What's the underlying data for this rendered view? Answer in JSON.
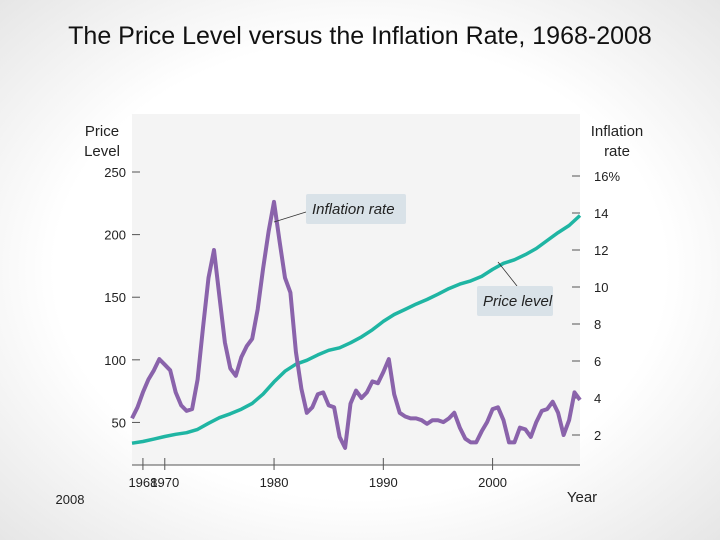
{
  "slide": {
    "title": "The Price Level versus the Inflation Rate, 1968-2008",
    "footer_text": "2008"
  },
  "chart_data": {
    "type": "line",
    "title": "The Price Level versus the Inflation Rate, 1968-2008",
    "xlabel": "Year",
    "ylabel_left": [
      "Price",
      "Level"
    ],
    "ylabel_right": [
      "Inflation",
      "rate"
    ],
    "x_ticks": [
      "1968",
      "1970",
      "1980",
      "1990",
      "2000"
    ],
    "x_range": [
      1967,
      2008
    ],
    "y_left_ticks": [
      "250",
      "200",
      "150",
      "100",
      "50"
    ],
    "y_left_range": [
      20,
      250
    ],
    "y_right_ticks": [
      "16%",
      "14",
      "12",
      "10",
      "8",
      "6",
      "4",
      "2"
    ],
    "y_right_range": [
      1,
      16
    ],
    "annotations": [
      "Inflation rate",
      "Price level"
    ],
    "colors": {
      "price_level": "#1fb5a3",
      "inflation_rate": "#8a63ab",
      "plot_bg": "#f4f4f4"
    },
    "series": [
      {
        "name": "Price level",
        "axis": "left",
        "x": [
          1967,
          1968,
          1969,
          1970,
          1971,
          1972,
          1973,
          1974,
          1975,
          1976,
          1977,
          1978,
          1979,
          1980,
          1981,
          1982,
          1983,
          1984,
          1985,
          1986,
          1987,
          1988,
          1989,
          1990,
          1991,
          1992,
          1993,
          1994,
          1995,
          1996,
          1997,
          1998,
          1999,
          2000,
          2001,
          2002,
          2003,
          2004,
          2005,
          2006,
          2007,
          2008
        ],
        "values": [
          33.4,
          34.8,
          36.7,
          38.8,
          40.5,
          41.8,
          44.4,
          49.3,
          53.8,
          56.9,
          60.6,
          65.2,
          72.6,
          82.4,
          90.9,
          96.5,
          99.6,
          103.9,
          107.6,
          109.6,
          113.6,
          118.3,
          124.0,
          130.7,
          136.2,
          140.3,
          144.5,
          148.2,
          152.4,
          156.9,
          160.5,
          163.0,
          166.6,
          172.2,
          177.1,
          179.9,
          184.0,
          188.9,
          195.3,
          201.6,
          207.3,
          215.3
        ]
      },
      {
        "name": "Inflation rate",
        "axis": "right",
        "x": [
          1967,
          1967.5,
          1968,
          1968.5,
          1969,
          1969.5,
          1970,
          1970.5,
          1971,
          1971.5,
          1972,
          1972.5,
          1973,
          1973.5,
          1974,
          1974.5,
          1975,
          1975.5,
          1976,
          1976.5,
          1977,
          1977.5,
          1978,
          1978.5,
          1979,
          1979.5,
          1980,
          1980.5,
          1981,
          1981.5,
          1982,
          1982.5,
          1983,
          1983.5,
          1984,
          1984.5,
          1985,
          1985.5,
          1986,
          1986.5,
          1987,
          1987.5,
          1988,
          1988.5,
          1989,
          1989.5,
          1990,
          1990.5,
          1991,
          1991.5,
          1992,
          1992.5,
          1993,
          1993.5,
          1994,
          1994.5,
          1995,
          1995.5,
          1996,
          1996.5,
          1997,
          1997.5,
          1998,
          1998.5,
          1999,
          1999.5,
          2000,
          2000.5,
          2001,
          2001.5,
          2002,
          2002.5,
          2003,
          2003.5,
          2004,
          2004.5,
          2005,
          2005.5,
          2006,
          2006.5,
          2007,
          2007.5,
          2008
        ],
        "values": [
          2.9,
          3.5,
          4.3,
          5.0,
          5.5,
          6.1,
          5.8,
          5.5,
          4.3,
          3.6,
          3.3,
          3.4,
          5.0,
          7.8,
          10.5,
          12.0,
          9.5,
          7.0,
          5.6,
          5.2,
          6.2,
          6.8,
          7.2,
          8.8,
          11.0,
          13.0,
          14.6,
          12.5,
          10.5,
          9.7,
          6.5,
          4.5,
          3.2,
          3.5,
          4.2,
          4.3,
          3.6,
          3.5,
          1.9,
          1.3,
          3.7,
          4.4,
          4.0,
          4.3,
          4.9,
          4.8,
          5.4,
          6.1,
          4.2,
          3.2,
          3.0,
          2.9,
          2.9,
          2.8,
          2.6,
          2.8,
          2.8,
          2.7,
          2.9,
          3.2,
          2.4,
          1.8,
          1.6,
          1.6,
          2.2,
          2.7,
          3.4,
          3.5,
          2.8,
          1.6,
          1.6,
          2.4,
          2.3,
          1.9,
          2.7,
          3.3,
          3.4,
          3.8,
          3.2,
          2.0,
          2.8,
          4.3,
          3.9
        ]
      }
    ]
  }
}
